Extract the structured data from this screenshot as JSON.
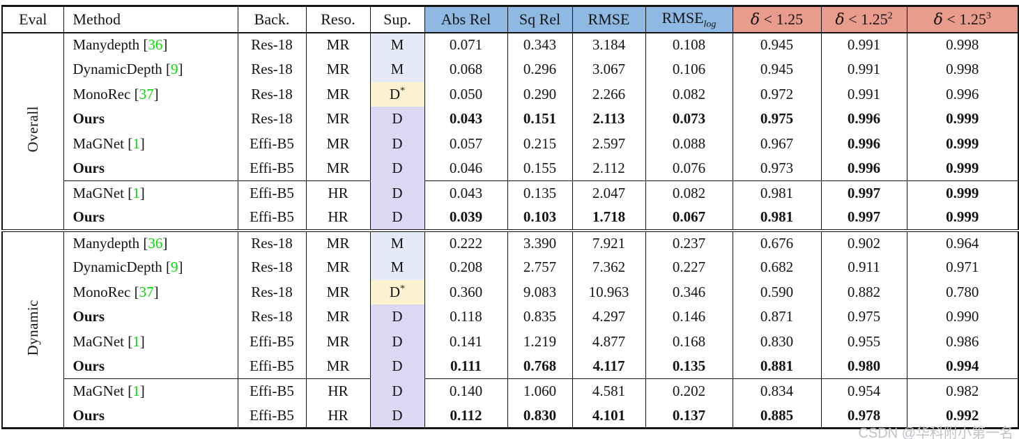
{
  "watermark": "CSDN @华科附小第一名",
  "colors": {
    "metric_header": "#8FB8E2",
    "delta_header": "#E99C8C",
    "sup_m": "#E4EAF8",
    "sup_dstar": "#FCF2D0",
    "sup_d": "#DCD7F2",
    "citation": "#00DE00"
  },
  "table": {
    "headers": [
      {
        "key": "eval",
        "label": "Eval"
      },
      {
        "key": "method",
        "label": "Method"
      },
      {
        "key": "back",
        "label": "Back."
      },
      {
        "key": "reso",
        "label": "Reso."
      },
      {
        "key": "sup",
        "label": "Sup."
      },
      {
        "key": "abs-rel",
        "label": "Abs Rel",
        "bg": "blue"
      },
      {
        "key": "sq-rel",
        "label": "Sq Rel",
        "bg": "blue"
      },
      {
        "key": "rmse",
        "label": "RMSE",
        "bg": "blue"
      },
      {
        "key": "rmse-log",
        "label": "RMSE",
        "sub": "log",
        "bg": "blue"
      },
      {
        "key": "delta-1",
        "label": "δ < 1.25",
        "bg": "salmon"
      },
      {
        "key": "delta-2",
        "label": "δ < 1.25",
        "sup": "2",
        "bg": "salmon"
      },
      {
        "key": "delta-3",
        "label": "δ < 1.25",
        "sup": "3",
        "bg": "salmon"
      }
    ],
    "sections": [
      {
        "eval_label": "Overall",
        "rows": [
          {
            "method": "Manydepth",
            "ref": "36",
            "method_bold": false,
            "back": "Res-18",
            "reso": "MR",
            "sup": "M",
            "values": [
              "0.071",
              "0.343",
              "3.184",
              "0.108",
              "0.945",
              "0.991",
              "0.998"
            ],
            "bold": [
              0,
              0,
              0,
              0,
              0,
              0,
              0
            ],
            "cline_after": false
          },
          {
            "method": "DynamicDepth",
            "ref": "9",
            "method_bold": false,
            "back": "Res-18",
            "reso": "MR",
            "sup": "M",
            "values": [
              "0.068",
              "0.296",
              "3.067",
              "0.106",
              "0.945",
              "0.991",
              "0.998"
            ],
            "bold": [
              0,
              0,
              0,
              0,
              0,
              0,
              0
            ],
            "cline_after": false
          },
          {
            "method": "MonoRec",
            "ref": "37",
            "method_bold": false,
            "back": "Res-18",
            "reso": "MR",
            "sup": "D*",
            "values": [
              "0.050",
              "0.290",
              "2.266",
              "0.082",
              "0.972",
              "0.991",
              "0.996"
            ],
            "bold": [
              0,
              0,
              0,
              0,
              0,
              0,
              0
            ],
            "cline_after": false
          },
          {
            "method": "Ours",
            "ref": "",
            "method_bold": true,
            "back": "Res-18",
            "reso": "MR",
            "sup": "D",
            "values": [
              "0.043",
              "0.151",
              "2.113",
              "0.073",
              "0.975",
              "0.996",
              "0.999"
            ],
            "bold": [
              1,
              1,
              1,
              1,
              1,
              1,
              1
            ],
            "cline_after": false
          },
          {
            "method": "MaGNet",
            "ref": "1",
            "method_bold": false,
            "back": "Effi-B5",
            "reso": "MR",
            "sup": "D",
            "values": [
              "0.057",
              "0.215",
              "2.597",
              "0.088",
              "0.967",
              "0.996",
              "0.999"
            ],
            "bold": [
              0,
              0,
              0,
              0,
              0,
              1,
              1
            ],
            "cline_after": false
          },
          {
            "method": "Ours",
            "ref": "",
            "method_bold": true,
            "back": "Effi-B5",
            "reso": "MR",
            "sup": "D",
            "values": [
              "0.046",
              "0.155",
              "2.112",
              "0.076",
              "0.973",
              "0.996",
              "0.999"
            ],
            "bold": [
              0,
              0,
              0,
              0,
              0,
              1,
              1
            ],
            "cline_after": true
          },
          {
            "method": "MaGNet",
            "ref": "1",
            "method_bold": false,
            "back": "Effi-B5",
            "reso": "HR",
            "sup": "D",
            "values": [
              "0.043",
              "0.135",
              "2.047",
              "0.082",
              "0.981",
              "0.997",
              "0.999"
            ],
            "bold": [
              0,
              0,
              0,
              0,
              0,
              1,
              1
            ],
            "cline_after": false
          },
          {
            "method": "Ours",
            "ref": "",
            "method_bold": true,
            "back": "Effi-B5",
            "reso": "HR",
            "sup": "D",
            "values": [
              "0.039",
              "0.103",
              "1.718",
              "0.067",
              "0.981",
              "0.997",
              "0.999"
            ],
            "bold": [
              1,
              1,
              1,
              1,
              1,
              1,
              1
            ],
            "cline_after": false
          }
        ]
      },
      {
        "eval_label": "Dynamic",
        "rows": [
          {
            "method": "Manydepth",
            "ref": "36",
            "method_bold": false,
            "back": "Res-18",
            "reso": "MR",
            "sup": "M",
            "values": [
              "0.222",
              "3.390",
              "7.921",
              "0.237",
              "0.676",
              "0.902",
              "0.964"
            ],
            "bold": [
              0,
              0,
              0,
              0,
              0,
              0,
              0
            ],
            "cline_after": false
          },
          {
            "method": "DynamicDepth",
            "ref": "9",
            "method_bold": false,
            "back": "Res-18",
            "reso": "MR",
            "sup": "M",
            "values": [
              "0.208",
              "2.757",
              "7.362",
              "0.227",
              "0.682",
              "0.911",
              "0.971"
            ],
            "bold": [
              0,
              0,
              0,
              0,
              0,
              0,
              0
            ],
            "cline_after": false
          },
          {
            "method": "MonoRec",
            "ref": "37",
            "method_bold": false,
            "back": "Res-18",
            "reso": "MR",
            "sup": "D*",
            "values": [
              "0.360",
              "9.083",
              "10.963",
              "0.346",
              "0.590",
              "0.882",
              "0.780"
            ],
            "bold": [
              0,
              0,
              0,
              0,
              0,
              0,
              0
            ],
            "cline_after": false
          },
          {
            "method": "Ours",
            "ref": "",
            "method_bold": true,
            "back": "Res-18",
            "reso": "MR",
            "sup": "D",
            "values": [
              "0.118",
              "0.835",
              "4.297",
              "0.146",
              "0.871",
              "0.975",
              "0.990"
            ],
            "bold": [
              0,
              0,
              0,
              0,
              0,
              0,
              0
            ],
            "cline_after": false
          },
          {
            "method": "MaGNet",
            "ref": "1",
            "method_bold": false,
            "back": "Effi-B5",
            "reso": "MR",
            "sup": "D",
            "values": [
              "0.141",
              "1.219",
              "4.877",
              "0.168",
              "0.830",
              "0.955",
              "0.986"
            ],
            "bold": [
              0,
              0,
              0,
              0,
              0,
              0,
              0
            ],
            "cline_after": false
          },
          {
            "method": "Ours",
            "ref": "",
            "method_bold": true,
            "back": "Effi-B5",
            "reso": "MR",
            "sup": "D",
            "values": [
              "0.111",
              "0.768",
              "4.117",
              "0.135",
              "0.881",
              "0.980",
              "0.994"
            ],
            "bold": [
              1,
              1,
              1,
              1,
              1,
              1,
              1
            ],
            "cline_after": true
          },
          {
            "method": "MaGNet",
            "ref": "1",
            "method_bold": false,
            "back": "Effi-B5",
            "reso": "HR",
            "sup": "D",
            "values": [
              "0.140",
              "1.060",
              "4.581",
              "0.202",
              "0.834",
              "0.954",
              "0.982"
            ],
            "bold": [
              0,
              0,
              0,
              0,
              0,
              0,
              0
            ],
            "cline_after": false
          },
          {
            "method": "Ours",
            "ref": "",
            "method_bold": true,
            "back": "Effi-B5",
            "reso": "HR",
            "sup": "D",
            "values": [
              "0.112",
              "0.830",
              "4.101",
              "0.137",
              "0.885",
              "0.978",
              "0.992"
            ],
            "bold": [
              1,
              1,
              1,
              1,
              1,
              1,
              1
            ],
            "cline_after": false
          }
        ]
      }
    ]
  }
}
